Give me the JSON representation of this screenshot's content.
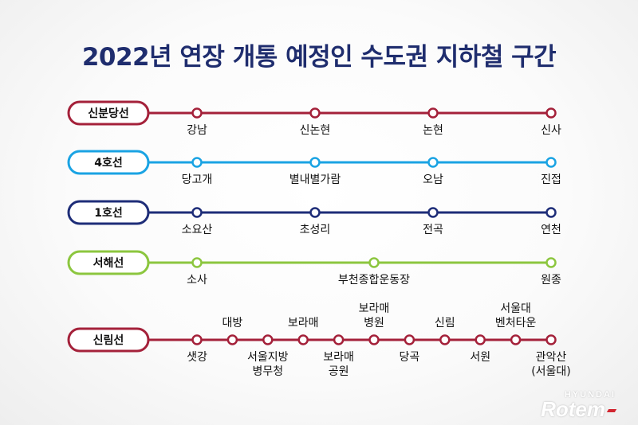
{
  "title": "2022년 연장 개통 예정인 수도권 지하철 구간",
  "lines": [
    {
      "name": "신분당선",
      "color": "#a4213a",
      "stations": [
        {
          "label": [
            "강남"
          ],
          "pos": "below"
        },
        {
          "label": [
            "신논현"
          ],
          "pos": "below"
        },
        {
          "label": [
            "논현"
          ],
          "pos": "below"
        },
        {
          "label": [
            "신사"
          ],
          "pos": "below"
        }
      ]
    },
    {
      "name": "4호선",
      "color": "#1aa3e3",
      "stations": [
        {
          "label": [
            "당고개"
          ],
          "pos": "below"
        },
        {
          "label": [
            "별내별가람"
          ],
          "pos": "below"
        },
        {
          "label": [
            "오남"
          ],
          "pos": "below"
        },
        {
          "label": [
            "진접"
          ],
          "pos": "below"
        }
      ]
    },
    {
      "name": "1호선",
      "color": "#1e2d78",
      "stations": [
        {
          "label": [
            "소요산"
          ],
          "pos": "below"
        },
        {
          "label": [
            "초성리"
          ],
          "pos": "below"
        },
        {
          "label": [
            "전곡"
          ],
          "pos": "below"
        },
        {
          "label": [
            "연천"
          ],
          "pos": "below"
        }
      ]
    },
    {
      "name": "서해선",
      "color": "#8cc63f",
      "stations": [
        {
          "label": [
            "소사"
          ],
          "pos": "below"
        },
        {
          "label": [
            "부천종합운동장"
          ],
          "pos": "below"
        },
        {
          "label": [
            "원종"
          ],
          "pos": "below"
        }
      ]
    },
    {
      "name": "신림선",
      "color": "#a4213a",
      "stations": [
        {
          "label": [
            "샛강"
          ],
          "pos": "below"
        },
        {
          "label": [
            "대방"
          ],
          "pos": "above"
        },
        {
          "label": [
            "서울지방",
            "병무청"
          ],
          "pos": "below"
        },
        {
          "label": [
            "보라매"
          ],
          "pos": "above"
        },
        {
          "label": [
            "보라매",
            "공원"
          ],
          "pos": "below"
        },
        {
          "label": [
            "보라매",
            "병원"
          ],
          "pos": "above"
        },
        {
          "label": [
            "당곡"
          ],
          "pos": "below"
        },
        {
          "label": [
            "신림"
          ],
          "pos": "above"
        },
        {
          "label": [
            "서원"
          ],
          "pos": "below"
        },
        {
          "label": [
            "서울대",
            "벤처타운"
          ],
          "pos": "above"
        },
        {
          "label": [
            "관악산",
            "(서울대)"
          ],
          "pos": "below"
        }
      ]
    }
  ],
  "logo": {
    "top": "HYUNDAI",
    "main": "Rotem"
  }
}
